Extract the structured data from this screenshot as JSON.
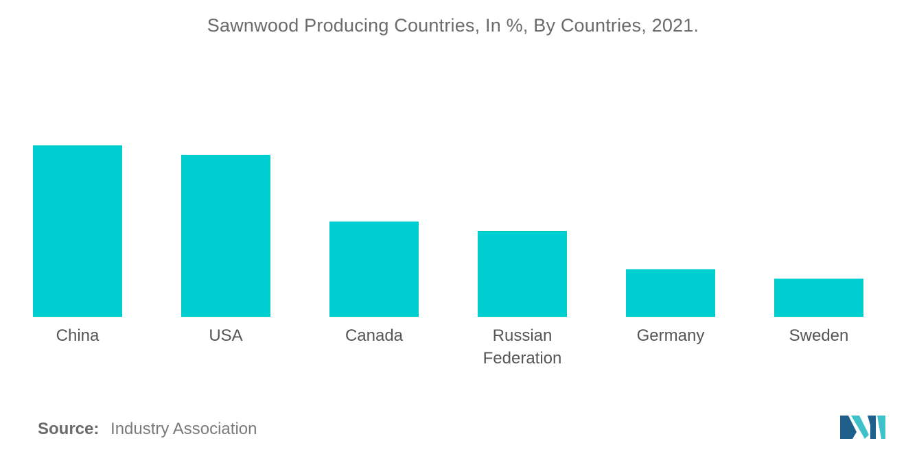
{
  "title": "Sawnwood Producing Countries, In %, By Countries, 2021.",
  "source": {
    "label": "Source:",
    "value": "Industry Association"
  },
  "colors": {
    "bar": "#00ced1",
    "logo_dark": "#1f5f8b",
    "logo_light": "#3fc1c9"
  },
  "chart_data": {
    "type": "bar",
    "title": "Sawnwood Producing Countries, In %, By Countries, 2021.",
    "categories": [
      "China",
      "USA",
      "Canada",
      "Russian Federation",
      "Germany",
      "Sweden"
    ],
    "category_lines": [
      [
        "China"
      ],
      [
        "USA"
      ],
      [
        "Canada"
      ],
      [
        "Russian",
        "Federation"
      ],
      [
        "Germany"
      ],
      [
        "Sweden"
      ]
    ],
    "values": [
      18,
      17,
      10,
      9,
      5,
      4
    ],
    "xlabel": "",
    "ylabel": "",
    "ylim": [
      0,
      18
    ],
    "grid": false,
    "legend": "none",
    "data_labels": false
  }
}
